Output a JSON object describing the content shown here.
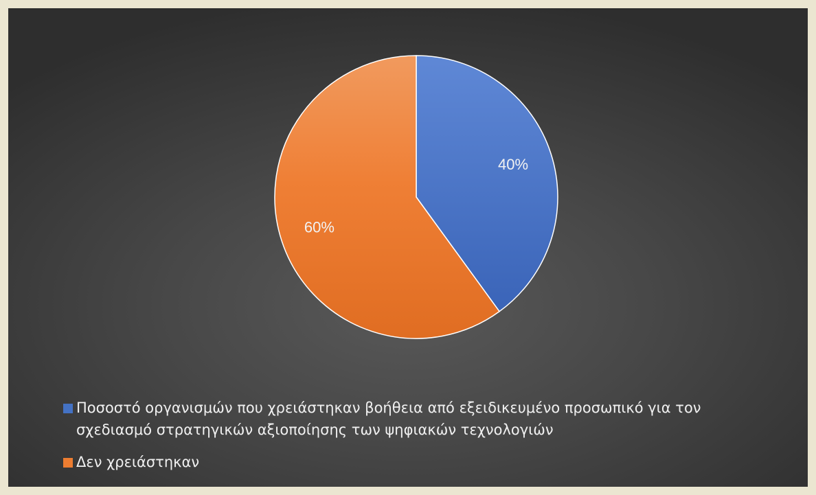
{
  "chart_data": {
    "type": "pie",
    "title": "",
    "start_angle_deg": 0,
    "direction": "clockwise",
    "slices": [
      {
        "label": "Ποσοστό οργανισμών που χρειάστηκαν βοήθεια από εξειδικευμένο προσωπικό για τον σχεδιασμό στρατηγικών αξιοποίησης των ψηφιακών τεχνολογιών",
        "value": 40,
        "display": "40%",
        "color": "#4472c4"
      },
      {
        "label": "Δεν χρειάστηκαν",
        "value": 60,
        "display": "60%",
        "color": "#ed7d31"
      }
    ],
    "legend": {
      "position": "bottom",
      "entries": [
        "Ποσοστό οργανισμών που χρειάστηκαν βοήθεια από εξειδικευμένο προσωπικό για τον σχεδιασμό στρατηγικών αξιοποίησης των ψηφιακών τεχνολογιών",
        "Δεν χρειάστηκαν"
      ]
    }
  }
}
